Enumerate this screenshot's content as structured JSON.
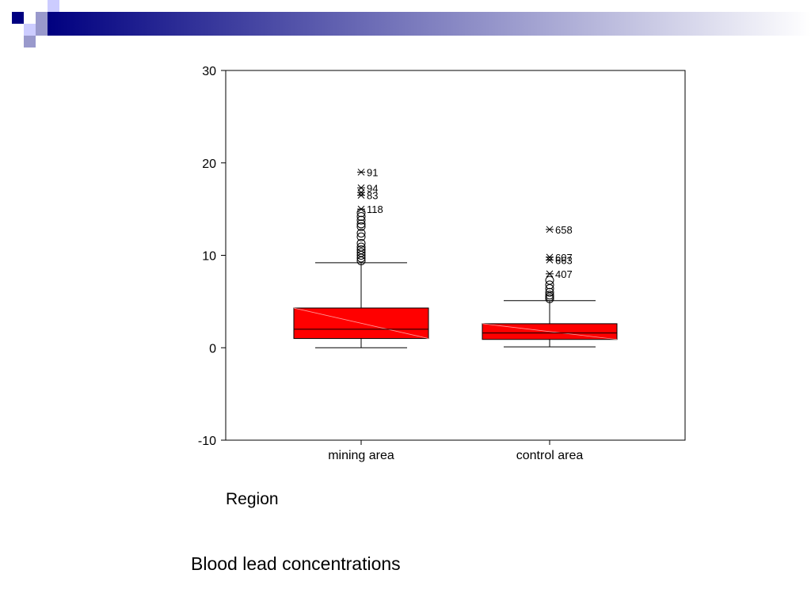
{
  "slide": {
    "caption": "Blood lead concentrations",
    "header_colors": [
      "#000080",
      "#9999cc",
      "#ccccff"
    ]
  },
  "chart_data": {
    "type": "box",
    "title": "",
    "xlabel": "Region",
    "ylabel": "",
    "ylim": [
      -10,
      30
    ],
    "yticks": [
      -10,
      0,
      10,
      20,
      30
    ],
    "categories": [
      "mining area",
      "control area"
    ],
    "box_color": "#ff0000",
    "series": [
      {
        "category": "mining area",
        "whisker_low": 0.0,
        "q1": 1.0,
        "median": 2.0,
        "q3": 4.3,
        "whisker_high": 9.2,
        "outliers": [
          {
            "label": "91",
            "value": 19.0,
            "marker": "star"
          },
          {
            "label": "94",
            "value": 17.3,
            "marker": "star"
          },
          {
            "label": "83",
            "value": 16.5,
            "marker": "star"
          },
          {
            "label": "",
            "value": 16.8,
            "marker": "star"
          },
          {
            "label": "118",
            "value": 15.0,
            "marker": "star"
          },
          {
            "label": "",
            "value": 14.6,
            "marker": "circle"
          },
          {
            "label": "",
            "value": 14.2,
            "marker": "circle"
          },
          {
            "label": "",
            "value": 13.8,
            "marker": "circle"
          },
          {
            "label": "",
            "value": 13.4,
            "marker": "circle"
          },
          {
            "label": "",
            "value": 13.1,
            "marker": "circle"
          },
          {
            "label": "",
            "value": 12.4,
            "marker": "circle"
          },
          {
            "label": "",
            "value": 12.0,
            "marker": "circle"
          },
          {
            "label": "",
            "value": 11.3,
            "marker": "circle"
          },
          {
            "label": "",
            "value": 10.9,
            "marker": "circle"
          },
          {
            "label": "",
            "value": 10.6,
            "marker": "circle"
          },
          {
            "label": "",
            "value": 10.3,
            "marker": "circle"
          },
          {
            "label": "",
            "value": 10.0,
            "marker": "circle"
          },
          {
            "label": "",
            "value": 9.7,
            "marker": "circle"
          },
          {
            "label": "",
            "value": 9.4,
            "marker": "circle"
          }
        ]
      },
      {
        "category": "control area",
        "whisker_low": 0.1,
        "q1": 0.9,
        "median": 1.6,
        "q3": 2.6,
        "whisker_high": 5.1,
        "outliers": [
          {
            "label": "658",
            "value": 12.8,
            "marker": "star"
          },
          {
            "label": "607",
            "value": 9.8,
            "marker": "star"
          },
          {
            "label": "663",
            "value": 9.5,
            "marker": "star"
          },
          {
            "label": "407",
            "value": 8.0,
            "marker": "star"
          },
          {
            "label": "",
            "value": 7.3,
            "marker": "circle"
          },
          {
            "label": "",
            "value": 6.8,
            "marker": "circle"
          },
          {
            "label": "",
            "value": 6.4,
            "marker": "circle"
          },
          {
            "label": "",
            "value": 6.0,
            "marker": "circle"
          },
          {
            "label": "",
            "value": 5.7,
            "marker": "circle"
          },
          {
            "label": "",
            "value": 5.5,
            "marker": "circle"
          },
          {
            "label": "",
            "value": 5.3,
            "marker": "circle"
          }
        ]
      }
    ]
  }
}
